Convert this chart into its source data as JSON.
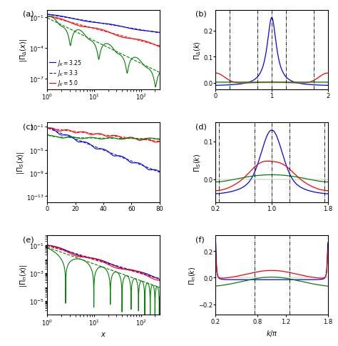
{
  "colors": [
    "blue",
    "red",
    "green"
  ],
  "labels": [
    "$J_K=3.25$",
    "$J_K=3.3$",
    "$J_K=5.0$"
  ],
  "panel_labels": [
    "(a)",
    "(b)",
    "(c)",
    "(d)",
    "(e)",
    "(f)"
  ]
}
